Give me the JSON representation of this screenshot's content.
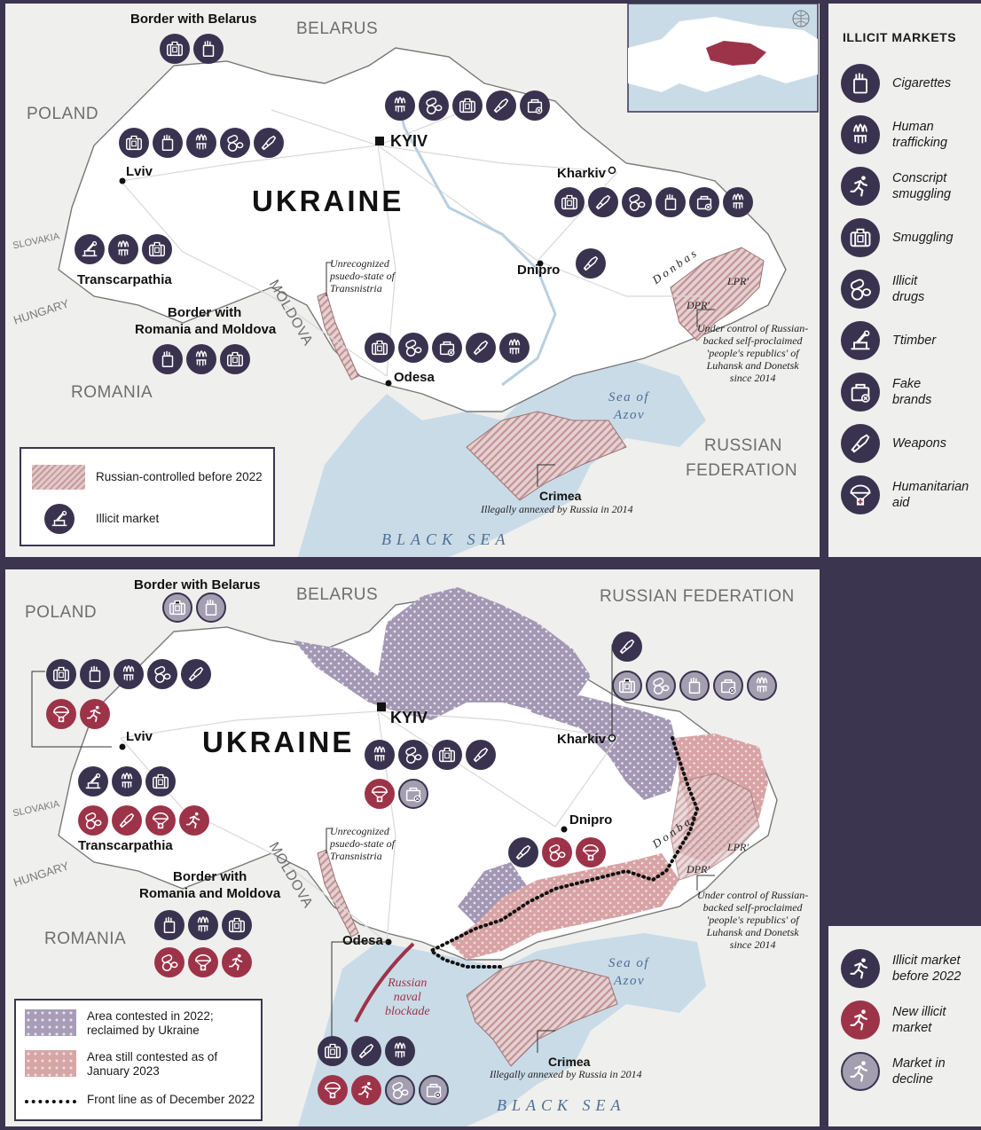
{
  "map_top": {
    "countries": {
      "belarus": "BELARUS",
      "poland": "POLAND",
      "slovakia": "SLOVAKIA",
      "hungary": "HUNGARY",
      "moldova": "MOLDOVA",
      "romania": "ROMANIA",
      "russia_line1": "RUSSIAN",
      "russia_line2": "FEDERATION"
    },
    "title": "UKRAINE",
    "cities": {
      "kyiv": "KYIV",
      "lviv": "Lviv",
      "kharkiv": "Kharkiv",
      "dnipro": "Dnipro",
      "odesa": "Odesa"
    },
    "regions": {
      "belarus_border": "Border with Belarus",
      "transcarpathia": "Transcarpathia",
      "romania_moldova_line1": "Border with",
      "romania_moldova_line2": "Romania and Moldova",
      "crimea": "Crimea"
    },
    "notes": {
      "transnistria": "Unrecognized\npsuedo-state of\nTransnistria",
      "crimea_annex": "Illegally annexed by Russia in 2014",
      "donbas": "D o n b a s",
      "lpr": "LPR'",
      "dpr": "DPR'",
      "under_control": "Under control of Russian-\nbacked self-proclaimed\n'people's republics' of\nLuhansk and Donetsk\nsince 2014"
    },
    "seas": {
      "azov_line1": "Sea of",
      "azov_line2": "Azov",
      "black_sea": "BLACK SEA"
    },
    "legend": {
      "hatched": "Russian-controlled before 2022",
      "market": "Illicit market"
    }
  },
  "map_bottom": {
    "countries": {
      "belarus": "BELARUS",
      "poland": "POLAND",
      "slovakia": "SLOVAKIA",
      "hungary": "HUNGARY",
      "moldova": "MOLDOVA",
      "romania": "ROMANIA",
      "russia": "RUSSIAN FEDERATION"
    },
    "title": "UKRAINE",
    "cities": {
      "kyiv": "KYIV",
      "lviv": "Lviv",
      "kharkiv": "Kharkiv",
      "dnipro": "Dnipro",
      "odesa": "Odesa"
    },
    "regions": {
      "belarus_border": "Border with Belarus",
      "transcarpathia": "Transcarpathia",
      "romania_moldova_line1": "Border with",
      "romania_moldova_line2": "Romania and Moldova",
      "crimea": "Crimea"
    },
    "notes": {
      "transnistria": "Unrecognized\npsuedo-state of\nTransnistria",
      "crimea_annex": "Illegally annexed by Russia in 2014",
      "donbas": "D o n b a s",
      "lpr": "LPR'",
      "dpr": "DPR'",
      "under_control": "Under control of Russian-\nbacked self-proclaimed\n'people's republics' of\nLuhansk and Donetsk\nsince 2014",
      "blockade": "Russian\nnaval\nblockade"
    },
    "seas": {
      "azov_line1": "Sea of",
      "azov_line2": "Azov",
      "black_sea": "BLACK SEA"
    },
    "legend": {
      "reclaimed": "Area contested in 2022;\nreclaimed by Ukraine",
      "contested": "Area still contested as of\nJanuary 2023",
      "frontline": "Front line as of December 2022"
    }
  },
  "sidebar_markets": {
    "title": "ILLICIT MARKETS",
    "items": [
      {
        "icon": "cigarettes-icon",
        "label": "Cigarettes"
      },
      {
        "icon": "human-trafficking-icon",
        "label": "Human\ntrafficking"
      },
      {
        "icon": "conscript-smuggling-icon",
        "label": "Conscript\nsmuggling"
      },
      {
        "icon": "smuggling-icon",
        "label": "Smuggling"
      },
      {
        "icon": "illicit-drugs-icon",
        "label": "Illicit\ndrugs"
      },
      {
        "icon": "timber-icon",
        "label": "Ttimber"
      },
      {
        "icon": "fake-brands-icon",
        "label": "Fake\nbrands"
      },
      {
        "icon": "weapons-icon",
        "label": "Weapons"
      },
      {
        "icon": "humanitarian-aid-icon",
        "label": "Humanitarian\naid"
      }
    ]
  },
  "sidebar_status": {
    "items": [
      {
        "status": "before",
        "label": "Illicit market\nbefore 2022"
      },
      {
        "status": "new",
        "label": "New illicit\nmarket"
      },
      {
        "status": "decline",
        "label": "Market in\ndecline"
      }
    ]
  },
  "colors": {
    "before": "#39334f",
    "new": "#9d3349",
    "decline": "#a39eb0",
    "sea": "#c9dbe7",
    "land": "#ffffff",
    "outside": "#efefed",
    "frame": "#3b3550"
  },
  "markers_top": [
    {
      "name": "belarus-border-markets",
      "markets": [
        "smuggling",
        "cigarettes"
      ]
    },
    {
      "name": "lviv-markets",
      "markets": [
        "smuggling",
        "cigarettes",
        "human-trafficking",
        "illicit-drugs",
        "weapons"
      ]
    },
    {
      "name": "kyiv-markets",
      "markets": [
        "human-trafficking",
        "illicit-drugs",
        "smuggling",
        "weapons",
        "fake-brands"
      ]
    },
    {
      "name": "kharkiv-markets",
      "markets": [
        "smuggling",
        "weapons",
        "illicit-drugs",
        "cigarettes",
        "fake-brands",
        "human-trafficking"
      ]
    },
    {
      "name": "transcarpathia-markets",
      "markets": [
        "timber",
        "human-trafficking",
        "smuggling"
      ]
    },
    {
      "name": "dnipro-markets",
      "markets": [
        "weapons"
      ]
    },
    {
      "name": "romania-moldova-markets",
      "markets": [
        "cigarettes",
        "human-trafficking",
        "smuggling"
      ]
    },
    {
      "name": "odesa-markets",
      "markets": [
        "smuggling",
        "illicit-drugs",
        "fake-brands",
        "weapons",
        "human-trafficking"
      ]
    }
  ],
  "markers_bottom": [
    {
      "name": "belarus-border-markets",
      "markets": [
        [
          "smuggling",
          "decline"
        ],
        [
          "cigarettes",
          "decline"
        ]
      ]
    },
    {
      "name": "lviv-markets-row1",
      "markets": [
        [
          "smuggling",
          "before"
        ],
        [
          "cigarettes",
          "before"
        ],
        [
          "human-trafficking",
          "before"
        ],
        [
          "illicit-drugs",
          "before"
        ],
        [
          "weapons",
          "before"
        ]
      ]
    },
    {
      "name": "lviv-markets-row2",
      "markets": [
        [
          "humanitarian-aid",
          "new"
        ],
        [
          "conscript-smuggling",
          "new"
        ]
      ]
    },
    {
      "name": "kharkiv-markets-row1",
      "markets": [
        [
          "weapons",
          "before"
        ]
      ]
    },
    {
      "name": "kharkiv-markets-row2",
      "markets": [
        [
          "smuggling",
          "decline"
        ],
        [
          "illicit-drugs",
          "decline"
        ],
        [
          "cigarettes",
          "decline"
        ],
        [
          "fake-brands",
          "decline"
        ],
        [
          "human-trafficking",
          "decline"
        ]
      ]
    },
    {
      "name": "kyiv-markets-row1",
      "markets": [
        [
          "human-trafficking",
          "before"
        ],
        [
          "illicit-drugs",
          "before"
        ],
        [
          "smuggling",
          "before"
        ],
        [
          "weapons",
          "before"
        ]
      ]
    },
    {
      "name": "kyiv-markets-row2",
      "markets": [
        [
          "humanitarian-aid",
          "new"
        ],
        [
          "fake-brands",
          "decline"
        ]
      ]
    },
    {
      "name": "transcarpathia-row1",
      "markets": [
        [
          "timber",
          "before"
        ],
        [
          "human-trafficking",
          "before"
        ],
        [
          "smuggling",
          "before"
        ]
      ]
    },
    {
      "name": "transcarpathia-row2",
      "markets": [
        [
          "illicit-drugs",
          "new"
        ],
        [
          "weapons",
          "new"
        ],
        [
          "humanitarian-aid",
          "new"
        ],
        [
          "conscript-smuggling",
          "new"
        ]
      ]
    },
    {
      "name": "dnipro-markets",
      "markets": [
        [
          "weapons",
          "before"
        ],
        [
          "illicit-drugs",
          "new"
        ],
        [
          "humanitarian-aid",
          "new"
        ]
      ]
    },
    {
      "name": "romania-moldova-row1",
      "markets": [
        [
          "cigarettes",
          "before"
        ],
        [
          "human-trafficking",
          "before"
        ],
        [
          "smuggling",
          "before"
        ]
      ]
    },
    {
      "name": "romania-moldova-row2",
      "markets": [
        [
          "illicit-drugs",
          "new"
        ],
        [
          "humanitarian-aid",
          "new"
        ],
        [
          "conscript-smuggling",
          "new"
        ]
      ]
    },
    {
      "name": "odesa-row1",
      "markets": [
        [
          "smuggling",
          "before"
        ],
        [
          "weapons",
          "before"
        ],
        [
          "human-trafficking",
          "before"
        ]
      ]
    },
    {
      "name": "odesa-row2",
      "markets": [
        [
          "humanitarian-aid",
          "new"
        ],
        [
          "conscript-smuggling",
          "new"
        ],
        [
          "illicit-drugs",
          "decline"
        ],
        [
          "fake-brands",
          "decline"
        ]
      ]
    }
  ]
}
